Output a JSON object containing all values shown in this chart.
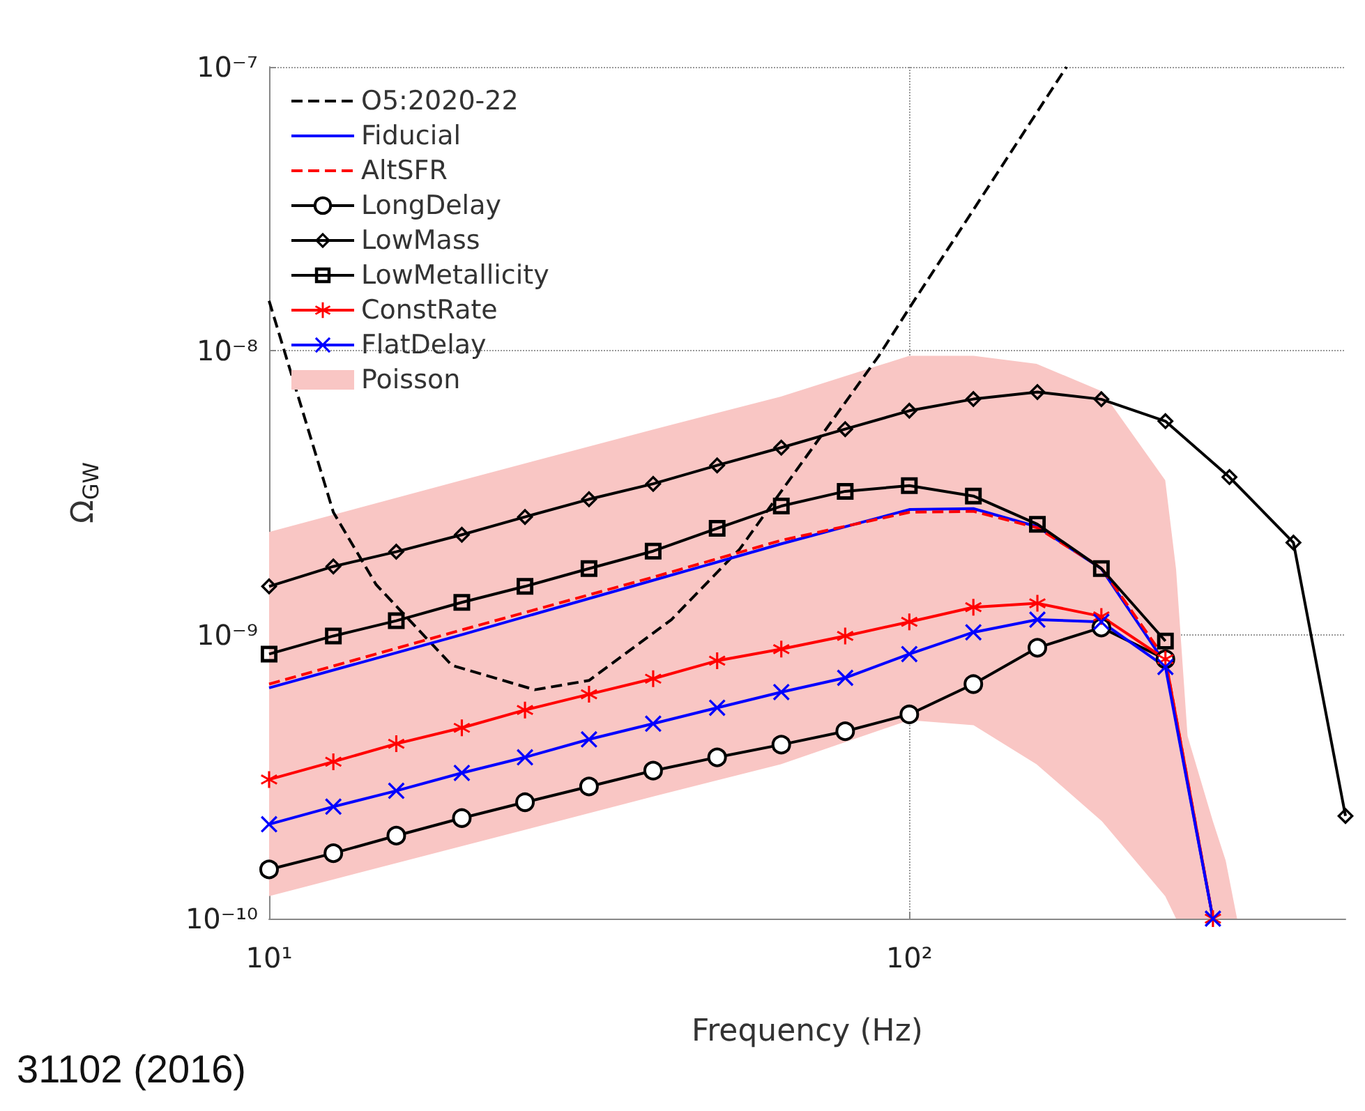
{
  "chart_data": {
    "type": "line",
    "xlabel": "Frequency (Hz)",
    "ylabel": "Ω$_{GW}$",
    "log": "xy",
    "grid": true,
    "legend": "top left",
    "xlim": [
      10,
      480
    ],
    "ylim": [
      1e-10,
      1e-07
    ],
    "xticks": [
      {
        "value": 10,
        "label": "10¹"
      },
      {
        "value": 100,
        "label": "10²"
      }
    ],
    "yticks": [
      {
        "value": 1e-10,
        "label": "10⁻¹⁰"
      },
      {
        "value": 1e-09,
        "label": "10⁻⁹"
      },
      {
        "value": 1e-08,
        "label": "10⁻⁸"
      },
      {
        "value": 1e-07,
        "label": "10⁻⁷"
      }
    ],
    "annotations": [
      "31102 (2016)"
    ],
    "series": [
      {
        "name": "O5:2020-22",
        "color": "#000000",
        "line_style": "dashed",
        "marker": "none",
        "x": [
          10,
          12.6,
          14.7,
          19.3,
          26,
          31.6,
          42.5,
          54.3,
          89.6,
          99.5,
          176
        ],
        "values": [
          1.5e-08,
          2.7e-09,
          1.5e-09,
          7.8e-10,
          6.4e-10,
          6.9e-10,
          1.13e-09,
          2e-09,
          9.6e-09,
          1.39e-08,
          1e-07
        ]
      },
      {
        "name": "Fiducial",
        "color": "#0000ff",
        "line_style": "solid",
        "marker": "none",
        "x": [
          10,
          20,
          40,
          63.1,
          100,
          125.9,
          158.5,
          199.5,
          251.2,
          298
        ],
        "values": [
          6.5e-10,
          1e-09,
          1.56e-09,
          2.09e-09,
          2.76e-09,
          2.78e-09,
          2.4e-09,
          1.71e-09,
          7.9e-10,
          1e-10
        ]
      },
      {
        "name": "AltSFR",
        "color": "#ff0000",
        "line_style": "dashed",
        "marker": "none",
        "x": [
          10,
          20,
          40,
          63.1,
          100,
          125.9,
          158.5,
          199.5,
          251.2,
          298
        ],
        "values": [
          6.7e-10,
          1.04e-09,
          1.6e-09,
          2.15e-09,
          2.7e-09,
          2.72e-09,
          2.38e-09,
          1.72e-09,
          8.2e-10,
          1e-10
        ]
      },
      {
        "name": "LongDelay",
        "color": "#000000",
        "line_style": "solid",
        "marker": "circle",
        "x": [
          10,
          12.6,
          15.8,
          20,
          25.1,
          31.6,
          39.8,
          50.1,
          63.1,
          79.4,
          100,
          125.9,
          158.5,
          199.5,
          251.2
        ],
        "values": [
          1.49e-10,
          1.7e-10,
          1.96e-10,
          2.26e-10,
          2.57e-10,
          2.92e-10,
          3.32e-10,
          3.7e-10,
          4.1e-10,
          4.57e-10,
          5.24e-10,
          6.7e-10,
          9e-10,
          1.06e-09,
          8.2e-10
        ]
      },
      {
        "name": "LowMass",
        "color": "#000000",
        "line_style": "solid",
        "marker": "diamond",
        "x": [
          10,
          12.6,
          15.8,
          20,
          25.1,
          31.6,
          39.8,
          50.1,
          63.1,
          79.4,
          100,
          125.9,
          158.5,
          199.5,
          251.2,
          316.2,
          398.1,
          480
        ],
        "values": [
          1.48e-09,
          1.74e-09,
          1.96e-09,
          2.25e-09,
          2.6e-09,
          3e-09,
          3.4e-09,
          3.95e-09,
          4.56e-09,
          5.3e-09,
          6.15e-09,
          6.76e-09,
          7.16e-09,
          6.75e-09,
          5.65e-09,
          3.59e-09,
          2.11e-09,
          2.3e-10
        ]
      },
      {
        "name": "LowMetallicity",
        "color": "#000000",
        "line_style": "solid",
        "marker": "square",
        "x": [
          10,
          12.6,
          15.8,
          20,
          25.1,
          31.6,
          39.8,
          50.1,
          63.1,
          79.4,
          100,
          125.9,
          158.5,
          199.5,
          251.2
        ],
        "values": [
          8.55e-10,
          9.9e-10,
          1.12e-09,
          1.3e-09,
          1.48e-09,
          1.71e-09,
          1.97e-09,
          2.37e-09,
          2.84e-09,
          3.2e-09,
          3.35e-09,
          3.08e-09,
          2.45e-09,
          1.71e-09,
          9.5e-10
        ]
      },
      {
        "name": "ConstRate",
        "color": "#ff0000",
        "line_style": "solid",
        "marker": "star",
        "x": [
          10,
          12.6,
          15.8,
          20,
          25.1,
          31.6,
          39.8,
          50.1,
          63.1,
          79.4,
          100,
          125.9,
          158.5,
          199.5,
          251.2,
          298
        ],
        "values": [
          3.09e-10,
          3.57e-10,
          4.13e-10,
          4.7e-10,
          5.43e-10,
          6.17e-10,
          7e-10,
          8.1e-10,
          8.9e-10,
          9.9e-10,
          1.11e-09,
          1.25e-09,
          1.29e-09,
          1.16e-09,
          8.2e-10,
          1e-10
        ]
      },
      {
        "name": "FlatDelay",
        "color": "#0000ff",
        "line_style": "solid",
        "marker": "cross",
        "x": [
          10,
          12.6,
          15.8,
          20,
          25.1,
          31.6,
          39.8,
          50.1,
          63.1,
          79.4,
          100,
          125.9,
          158.5,
          199.5,
          251.2,
          298
        ],
        "values": [
          2.15e-10,
          2.48e-10,
          2.82e-10,
          3.26e-10,
          3.7e-10,
          4.28e-10,
          4.86e-10,
          5.53e-10,
          6.28e-10,
          7.05e-10,
          8.55e-10,
          1.02e-09,
          1.13e-09,
          1.11e-09,
          7.7e-10,
          1e-10
        ]
      },
      {
        "name": "Poisson",
        "type": "area",
        "color": "#f9c6c4",
        "x": [
          10,
          20,
          40,
          63,
          100,
          126,
          158,
          200,
          251,
          261,
          272,
          298,
          312,
          325
        ],
        "values": [
          null,
          null,
          null,
          null,
          null,
          null,
          null,
          null,
          null,
          null,
          null,
          null,
          null,
          null
        ],
        "upper": [
          2.3e-09,
          3.5e-09,
          5.3e-09,
          6.9e-09,
          9.6e-09,
          9.6e-09,
          9e-09,
          7.2e-09,
          3.5e-09,
          1.7e-09,
          4.4e-10,
          2.2e-10,
          1.6e-10,
          1e-10
        ],
        "lower": [
          1.2e-10,
          1.8e-10,
          2.7e-10,
          3.5e-10,
          5e-10,
          4.8e-10,
          3.5e-10,
          2.2e-10,
          1.2e-10,
          1e-10,
          1e-10,
          1e-10,
          1e-10,
          1e-10
        ]
      }
    ]
  }
}
